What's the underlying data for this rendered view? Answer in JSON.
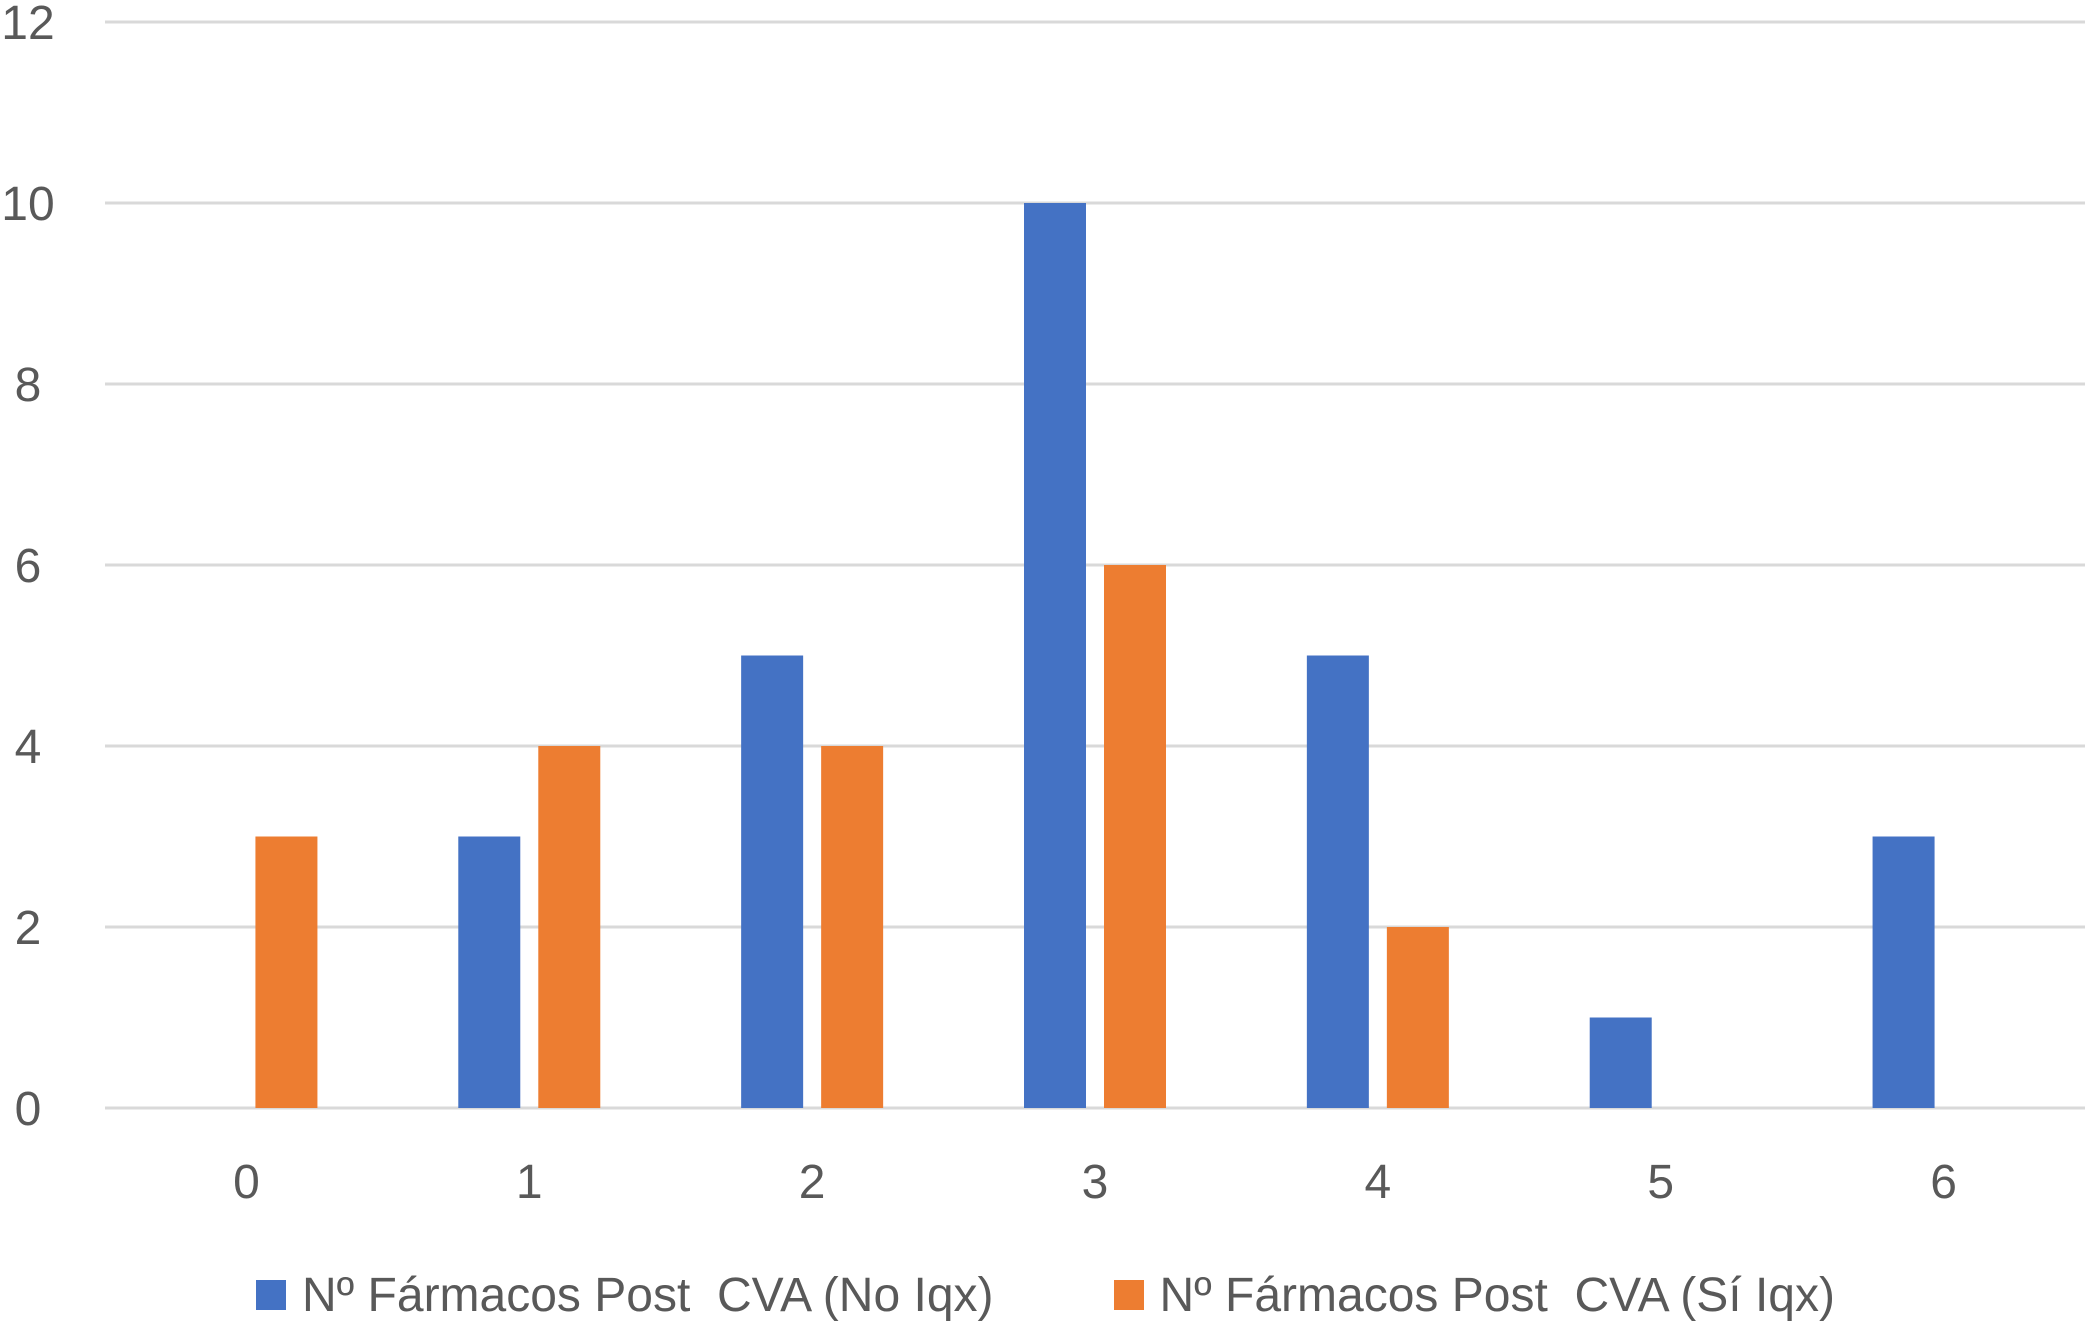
{
  "chart_data": {
    "type": "bar",
    "categories": [
      "0",
      "1",
      "2",
      "3",
      "4",
      "5",
      "6"
    ],
    "series": [
      {
        "name": "Nº Fármacos Post  CVA (No Iqx)",
        "color": "#4472C4",
        "values": [
          0,
          3,
          5,
          10,
          5,
          1,
          3
        ]
      },
      {
        "name": "Nº Fármacos Post  CVA (Sí Iqx)",
        "color": "#ED7D31",
        "values": [
          3,
          4,
          4,
          6,
          2,
          0,
          0
        ]
      }
    ],
    "ylim": [
      0,
      12
    ],
    "yticks": [
      "0",
      "2",
      "4",
      "6",
      "8",
      "10",
      "12"
    ],
    "grid": true,
    "gridColor": "#D9D9D9",
    "legend_position": "bottom"
  }
}
